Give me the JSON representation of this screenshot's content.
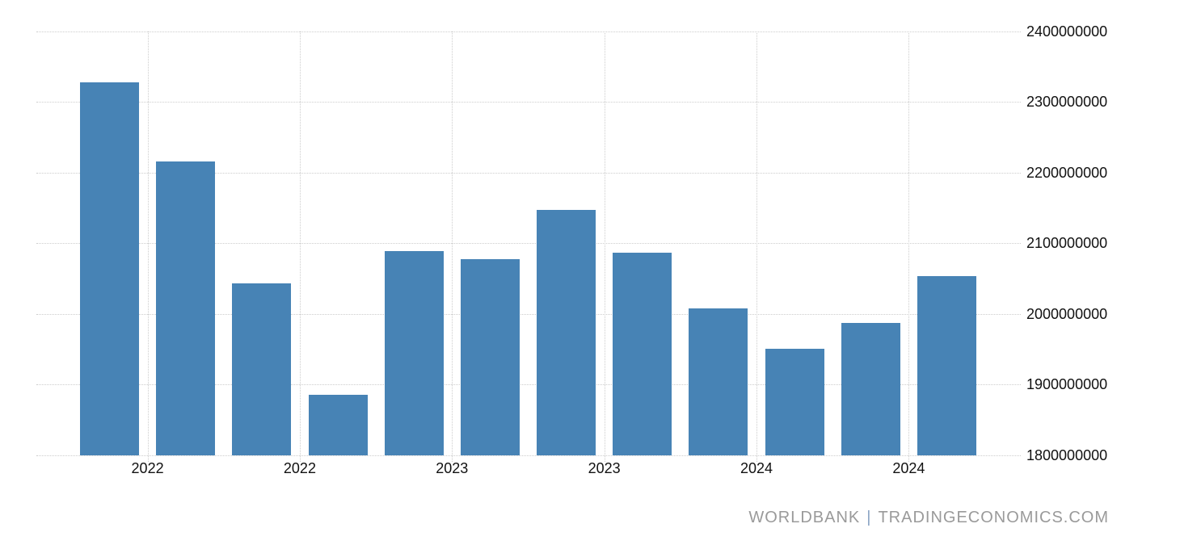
{
  "colors": {
    "background": "#ffffff",
    "bar": "#4783b5",
    "grid": "#cdcdcd",
    "axis_text": "#111111",
    "watermark": "#9a9a9a",
    "watermark_separator": "#8aa4c4"
  },
  "watermark": {
    "source": "WORLDBANK",
    "separator": "|",
    "site": "TRADINGECONOMICS.COM"
  },
  "chart_data": {
    "type": "bar",
    "series_count": 1,
    "values": [
      2328000000,
      2216000000,
      2043000000,
      1885000000,
      2089000000,
      2077000000,
      2147000000,
      2086000000,
      2007000000,
      1950000000,
      1987000000,
      2053000000
    ],
    "x_tick_labels": [
      "2022",
      "2022",
      "2023",
      "2023",
      "2024",
      "2024"
    ],
    "x_tick_between_bar_pairs": [
      [
        0,
        1
      ],
      [
        2,
        3
      ],
      [
        4,
        5
      ],
      [
        6,
        7
      ],
      [
        8,
        9
      ],
      [
        10,
        11
      ]
    ],
    "y_ticks": [
      2400000000,
      2300000000,
      2200000000,
      2100000000,
      2000000000,
      1900000000,
      1800000000
    ],
    "ylim": [
      1800000000,
      2400000000
    ],
    "title": "",
    "xlabel": "",
    "ylabel": "",
    "grid": "dotted",
    "legend": "none",
    "y_axis_side": "right"
  }
}
